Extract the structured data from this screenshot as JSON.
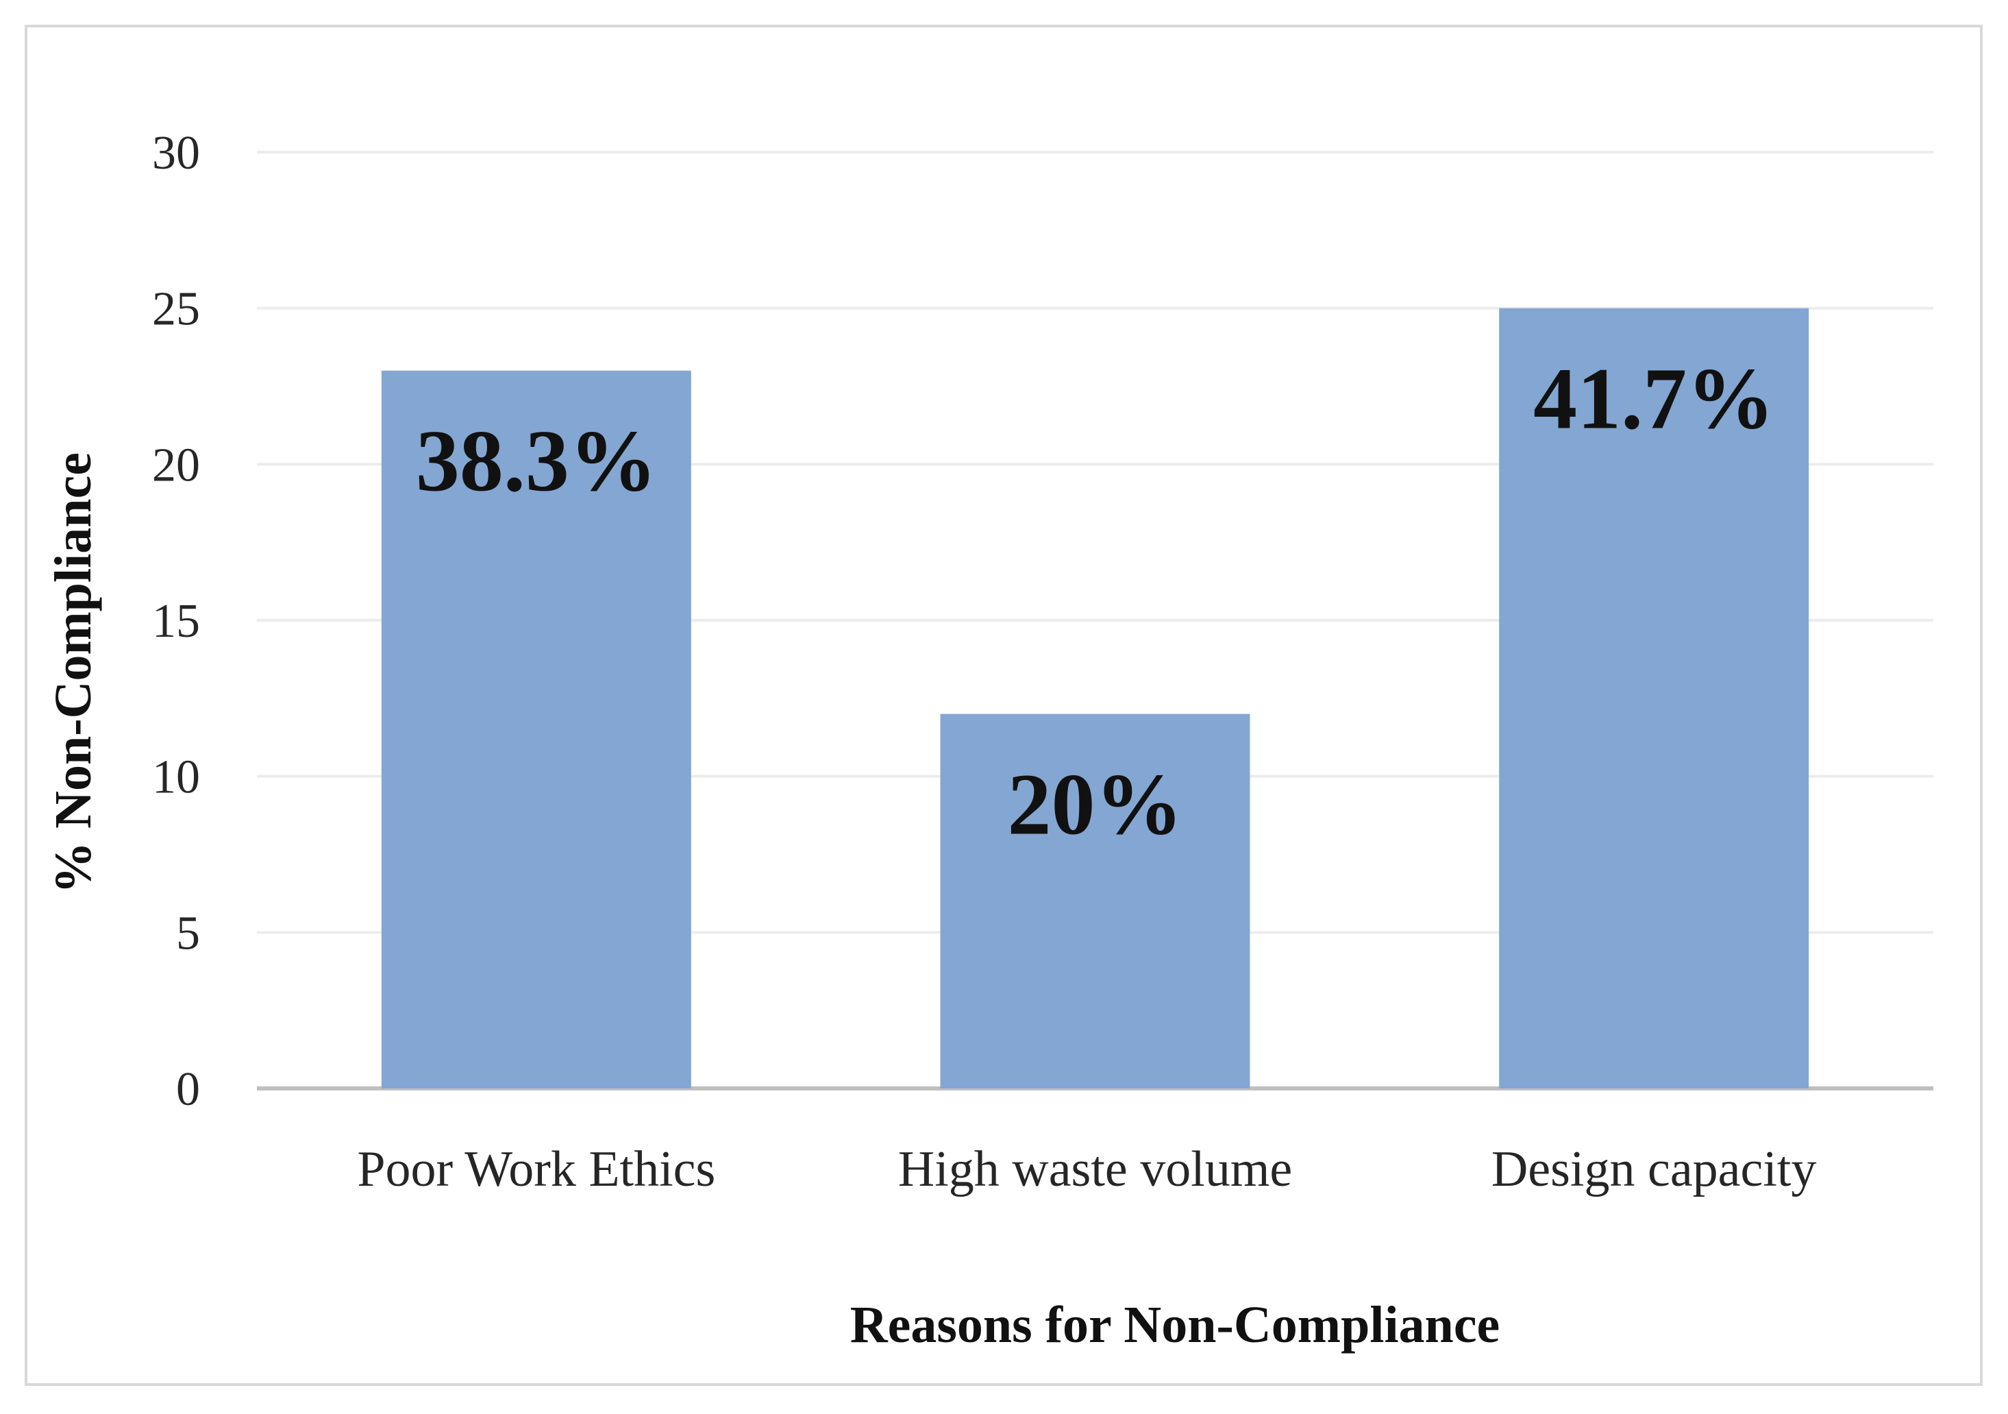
{
  "chart_data": {
    "type": "bar",
    "title": "",
    "xlabel": "Reasons for Non-Compliance",
    "ylabel": "% Non-Compliance",
    "categories": [
      "Poor Work Ethics",
      "High waste volume",
      "Design capacity"
    ],
    "values": [
      23,
      12,
      25
    ],
    "data_labels": [
      "38.3%",
      "20%",
      "41.7%"
    ],
    "ylim": [
      0,
      30
    ],
    "yticks": [
      0,
      5,
      10,
      15,
      20,
      25,
      30
    ],
    "grid": true,
    "legend": "none",
    "bar_color": "#84a6d2"
  }
}
